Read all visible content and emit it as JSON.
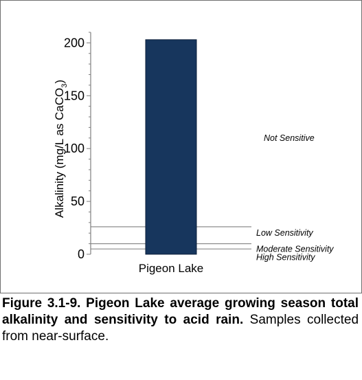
{
  "chart_data": {
    "type": "bar",
    "categories": [
      "Pigeon Lake"
    ],
    "values": [
      203
    ],
    "ylabel": "Alkalinity (mg/L as CaCO3)",
    "ylabel_parts": [
      "Alkalinity (mg/L as CaCO",
      "3",
      ")"
    ],
    "ylim": [
      0,
      210
    ],
    "yticks": [
      0,
      50,
      100,
      150,
      200
    ],
    "grid": false,
    "bar_color": "#17365d",
    "reference_lines": [
      {
        "value": 26,
        "label": "Low Sensitivity"
      },
      {
        "value": 10,
        "label": "Moderate Sensitivity"
      },
      {
        "value": 5,
        "label": "High Sensitivity"
      }
    ],
    "line_color": "#8c8c8c",
    "region_labels": [
      {
        "text": "Not Sensitive",
        "at": 110
      }
    ]
  },
  "caption": {
    "bold": "Figure 3.1-9. Pigeon Lake average growing season total alkalinity and sensitivity to acid rain.",
    "normal": "Samples collected from near-surface."
  }
}
